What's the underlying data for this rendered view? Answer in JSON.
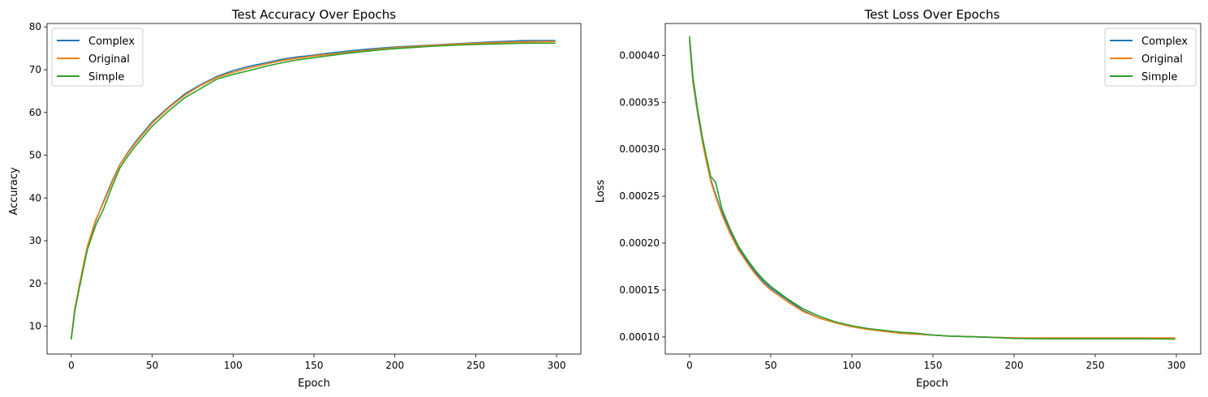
{
  "colors": {
    "complex": "#1f77b4",
    "original": "#ff7f0e",
    "simple": "#2ca02c"
  },
  "chart_data": [
    {
      "type": "line",
      "title": "Test Accuracy Over Epochs",
      "xlabel": "Epoch",
      "ylabel": "Accuracy",
      "xlim": [
        -15,
        315
      ],
      "ylim": [
        3.5,
        80.8
      ],
      "xticks": [
        0,
        50,
        100,
        150,
        200,
        250,
        300
      ],
      "xtick_labels": [
        "0",
        "50",
        "100",
        "150",
        "200",
        "250",
        "300"
      ],
      "yticks": [
        10,
        20,
        30,
        40,
        50,
        60,
        70,
        80
      ],
      "ytick_labels": [
        "10",
        "20",
        "30",
        "40",
        "50",
        "60",
        "70",
        "80"
      ],
      "legend_position": "top-left",
      "grid": false,
      "x": [
        0,
        2,
        5,
        8,
        10,
        15,
        20,
        25,
        30,
        35,
        40,
        50,
        60,
        70,
        80,
        90,
        100,
        110,
        120,
        130,
        140,
        150,
        160,
        170,
        180,
        190,
        200,
        220,
        240,
        260,
        280,
        299
      ],
      "series": [
        {
          "name": "Complex",
          "color_key": "complex",
          "values": [
            7.2,
            13.5,
            19.5,
            25.0,
            28.5,
            34.5,
            39.3,
            43.8,
            47.8,
            50.7,
            53.3,
            57.8,
            61.2,
            64.3,
            66.5,
            68.4,
            69.8,
            70.8,
            71.6,
            72.4,
            73.0,
            73.4,
            73.9,
            74.3,
            74.7,
            75.0,
            75.3,
            75.7,
            76.1,
            76.5,
            76.8,
            76.8
          ]
        },
        {
          "name": "Original",
          "color_key": "original",
          "values": [
            7.2,
            13.8,
            19.8,
            25.3,
            28.8,
            34.8,
            39.0,
            43.5,
            47.7,
            50.5,
            53.0,
            57.5,
            61.0,
            64.0,
            66.3,
            68.2,
            69.4,
            70.4,
            71.3,
            72.1,
            72.7,
            73.2,
            73.6,
            74.0,
            74.4,
            74.8,
            75.1,
            75.6,
            76.0,
            76.3,
            76.5,
            76.6
          ]
        },
        {
          "name": "Simple",
          "color_key": "simple",
          "values": [
            7.0,
            13.2,
            19.0,
            24.5,
            28.0,
            33.5,
            37.5,
            42.5,
            47.0,
            49.8,
            52.3,
            56.8,
            60.3,
            63.4,
            65.6,
            67.8,
            68.9,
            69.8,
            70.8,
            71.6,
            72.3,
            72.8,
            73.3,
            73.8,
            74.2,
            74.6,
            74.9,
            75.4,
            75.8,
            76.0,
            76.2,
            76.2
          ]
        }
      ]
    },
    {
      "type": "line",
      "title": "Test Loss Over Epochs",
      "xlabel": "Epoch",
      "ylabel": "Loss",
      "xlim": [
        -15,
        315
      ],
      "ylim": [
        8.18e-05,
        0.000434
      ],
      "xticks": [
        0,
        50,
        100,
        150,
        200,
        250,
        300
      ],
      "xtick_labels": [
        "0",
        "50",
        "100",
        "150",
        "200",
        "250",
        "300"
      ],
      "yticks": [
        0.0001,
        0.00015,
        0.0002,
        0.00025,
        0.0003,
        0.00035,
        0.0004
      ],
      "ytick_labels": [
        "0.00010",
        "0.00015",
        "0.00020",
        "0.00025",
        "0.00030",
        "0.00035",
        "0.00040"
      ],
      "legend_position": "top-right",
      "grid": false,
      "x": [
        0,
        2,
        5,
        8,
        10,
        13,
        16,
        20,
        25,
        30,
        35,
        40,
        45,
        50,
        60,
        70,
        80,
        90,
        100,
        110,
        120,
        130,
        140,
        150,
        160,
        180,
        200,
        220,
        250,
        280,
        299
      ],
      "series": [
        {
          "name": "Complex",
          "color_key": "complex",
          "values": [
            0.000415,
            0.000372,
            0.000338,
            0.000307,
            0.00029,
            0.000268,
            0.000252,
            0.000232,
            0.000213,
            0.000195,
            0.000182,
            0.00017,
            0.00016,
            0.000152,
            0.00014,
            0.000128,
            0.00012,
            0.000115,
            0.000111,
            0.000108,
            0.000106,
            0.000104,
            0.000103,
            0.000102,
            0.000101,
            0.0001,
            9.9e-05,
            9.85e-05,
            9.85e-05,
            9.85e-05,
            9.85e-05
          ]
        },
        {
          "name": "Original",
          "color_key": "original",
          "values": [
            0.000418,
            0.000374,
            0.00034,
            0.000308,
            0.00029,
            0.000266,
            0.00025,
            0.00023,
            0.00021,
            0.000193,
            0.00018,
            0.000168,
            0.000158,
            0.00015,
            0.000138,
            0.000127,
            0.00012,
            0.000115,
            0.000111,
            0.000108,
            0.000106,
            0.000104,
            0.000103,
            0.000102,
            0.000101,
            0.0001,
            9.9e-05,
            9.9e-05,
            9.9e-05,
            9.9e-05,
            9.9e-05
          ]
        },
        {
          "name": "Simple",
          "color_key": "simple",
          "values": [
            0.00042,
            0.000378,
            0.000342,
            0.000312,
            0.000295,
            0.000271,
            0.000265,
            0.000236,
            0.000215,
            0.000197,
            0.000184,
            0.000172,
            0.000162,
            0.000154,
            0.000141,
            0.00013,
            0.000122,
            0.000116,
            0.000112,
            0.000109,
            0.000107,
            0.000105,
            0.000104,
            0.000102,
            0.000101,
            0.0001,
            9.85e-05,
            9.8e-05,
            9.8e-05,
            9.8e-05,
            9.78e-05
          ]
        }
      ]
    }
  ]
}
